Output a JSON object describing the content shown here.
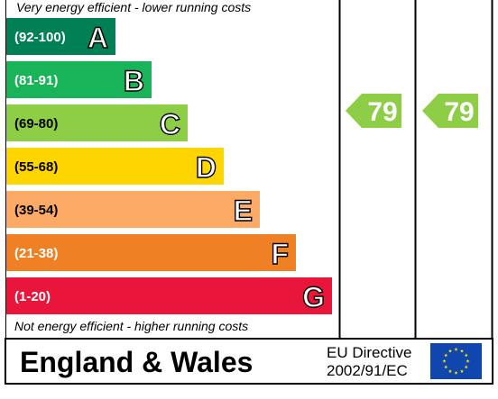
{
  "top_caption": "Very energy efficient - lower running costs",
  "bottom_caption": "Not energy efficient - higher running costs",
  "footer": {
    "country": "England & Wales",
    "directive_line1": "EU Directive",
    "directive_line2": "2002/91/EC",
    "flag_icon": "eu-flag-icon"
  },
  "chart_data": {
    "type": "bar",
    "categories": [
      "A",
      "B",
      "C",
      "D",
      "E",
      "F",
      "G"
    ],
    "ranges": [
      "(92-100)",
      "(81-91)",
      "(69-80)",
      "(55-68)",
      "(39-54)",
      "(21-38)",
      "(1-20)"
    ],
    "colors": [
      "#008054",
      "#19b459",
      "#8dce46",
      "#ffd500",
      "#fcaa65",
      "#ef8023",
      "#e9153b"
    ],
    "current": {
      "value": "79",
      "band": "C",
      "color": "#8dce46"
    },
    "potential": {
      "value": "79",
      "band": "C",
      "color": "#8dce46"
    }
  }
}
